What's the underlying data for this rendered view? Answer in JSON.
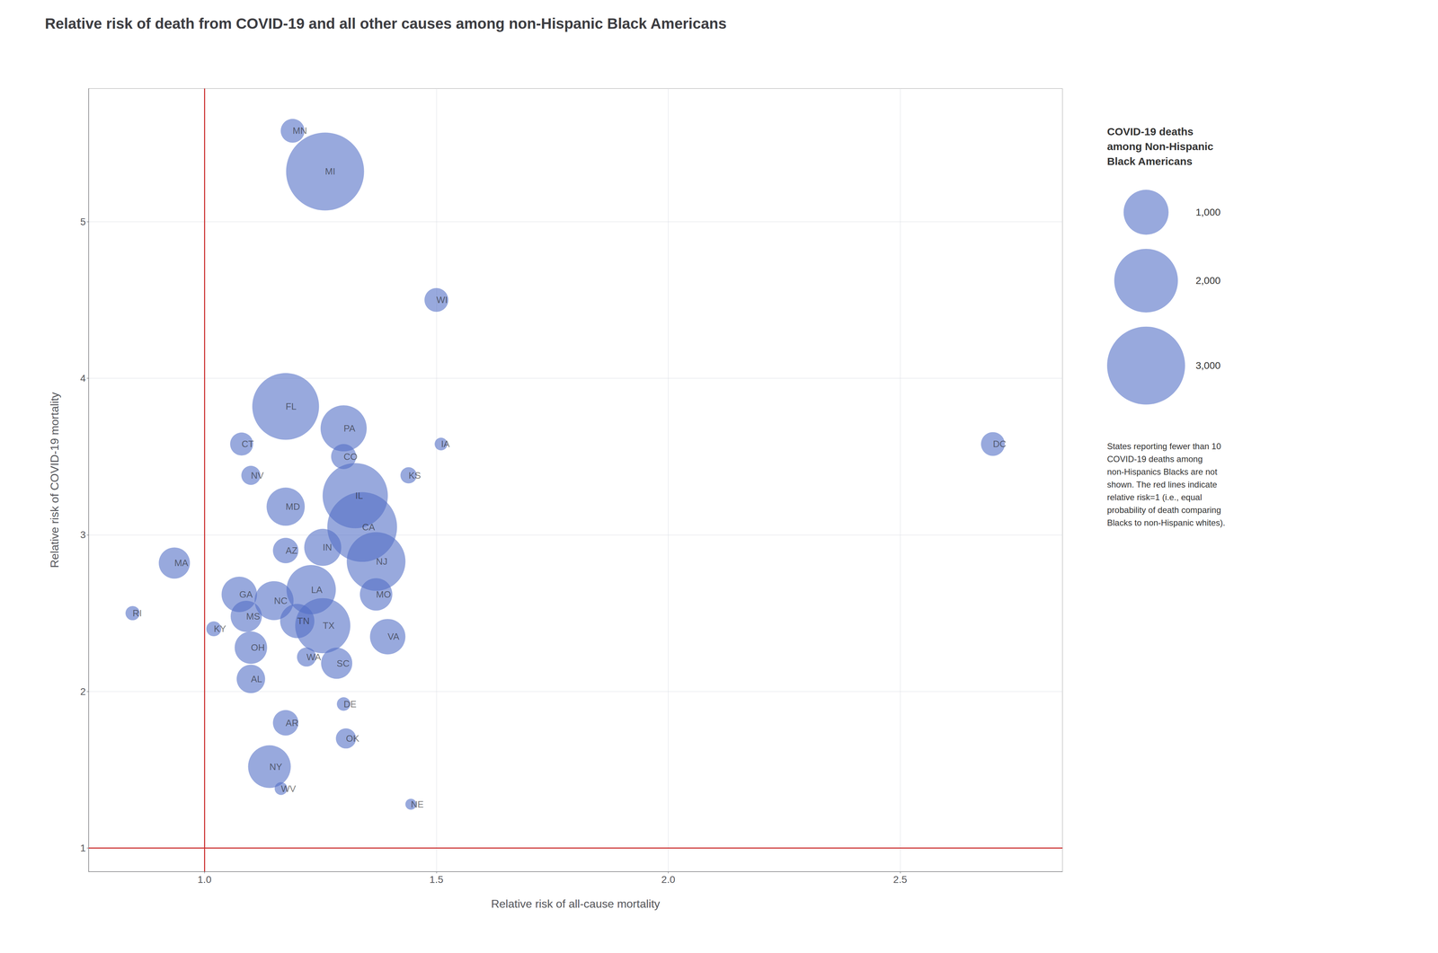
{
  "chart_data": {
    "type": "scatter",
    "title": "Relative risk of death from COVID-19 and all other causes among non-Hispanic Black Americans",
    "xlabel": "Relative risk of all-cause mortality",
    "ylabel": "Relative risk of COVID-19 mortality",
    "labels": [
      "RI",
      "MA",
      "KY",
      "GA",
      "MS",
      "OH",
      "AL",
      "CT",
      "NV",
      "MD",
      "AZ",
      "NC",
      "TN",
      "WA",
      "AR",
      "NY",
      "WV",
      "FL",
      "LA",
      "IN",
      "TX",
      "SC",
      "DE",
      "OK",
      "NE",
      "CO",
      "PA",
      "IL",
      "CA",
      "NJ",
      "MO",
      "VA",
      "KS",
      "IA",
      "WI",
      "MN",
      "MI",
      "DC"
    ],
    "x": [
      0.845,
      0.935,
      1.02,
      1.075,
      1.09,
      1.1,
      1.1,
      1.08,
      1.1,
      1.175,
      1.175,
      1.15,
      1.2,
      1.22,
      1.175,
      1.14,
      1.165,
      1.175,
      1.23,
      1.255,
      1.255,
      1.285,
      1.3,
      1.305,
      1.445,
      1.3,
      1.3,
      1.325,
      1.34,
      1.37,
      1.37,
      1.395,
      1.44,
      1.51,
      1.5,
      1.19,
      1.26,
      2.7
    ],
    "y": [
      2.5,
      2.82,
      2.4,
      2.62,
      2.48,
      2.28,
      2.08,
      3.58,
      3.38,
      3.18,
      2.9,
      2.58,
      2.45,
      2.22,
      1.8,
      1.52,
      1.38,
      3.82,
      2.65,
      2.92,
      2.42,
      2.18,
      1.92,
      1.7,
      1.28,
      3.5,
      3.68,
      3.25,
      3.05,
      2.83,
      2.62,
      2.35,
      3.38,
      3.58,
      4.5,
      5.58,
      5.32,
      3.58
    ],
    "deaths": [
      100,
      480,
      110,
      620,
      480,
      520,
      400,
      260,
      180,
      720,
      320,
      750,
      580,
      180,
      320,
      900,
      80,
      2200,
      1200,
      680,
      1500,
      480,
      90,
      200,
      60,
      310,
      1050,
      2100,
      2400,
      1700,
      520,
      620,
      130,
      80,
      280,
      280,
      3000,
      280
    ],
    "xlim": [
      0.75,
      2.85
    ],
    "ylim": [
      0.85,
      5.85
    ],
    "xticks": [
      {
        "value": 1.0,
        "label": "1.0"
      },
      1.5,
      {
        "value": 2.0,
        "label": "2.0"
      },
      2.5
    ],
    "yticks": [
      1,
      2,
      3,
      4,
      5
    ],
    "grid": true,
    "reference_lines": {
      "x": 1.0,
      "y": 1.0,
      "color": "#cc3333"
    },
    "size_legend": {
      "title": "COVID-19 deaths\namong Non-Hispanic\nBlack Americans",
      "values": [
        1000,
        2000,
        3000
      ],
      "labels": [
        "1,000",
        "2,000",
        "3,000"
      ]
    },
    "footnote": "States reporting fewer than 10\nCOVID-19 deaths among\nnon-Hispanics Blacks are not\nshown. The red lines indicate\nrelative risk=1 (i.e., equal\nprobability of death comparing\nBlacks to non-Hispanic whites)."
  }
}
